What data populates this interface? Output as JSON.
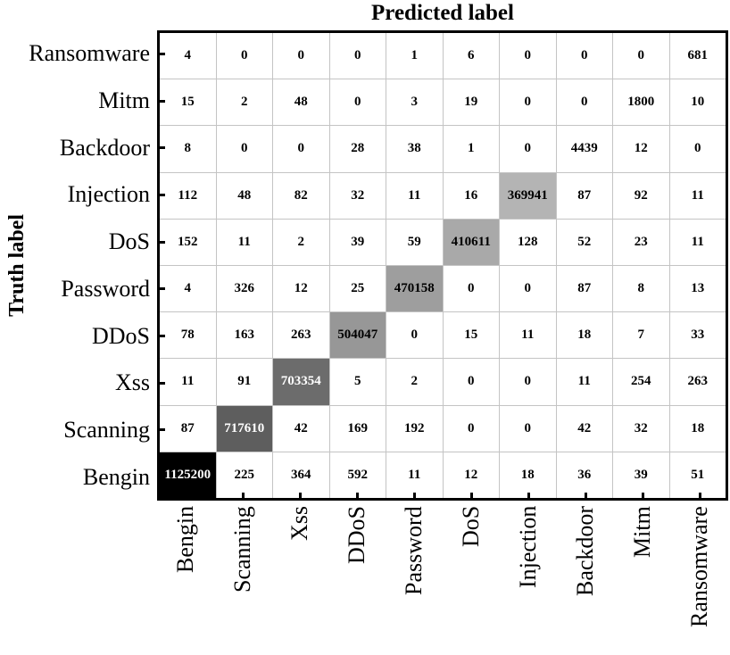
{
  "title": "Predicted label",
  "chart_data": {
    "type": "heatmap",
    "title": "Predicted label",
    "xlabel": "Predicted label",
    "ylabel": "Truth label",
    "x_categories": [
      "Bengin",
      "Scanning",
      "Xss",
      "DDoS",
      "Password",
      "DoS",
      "Injection",
      "Backdoor",
      "Mitm",
      "Ransomware"
    ],
    "y_categories": [
      "Ransomware",
      "Mitm",
      "Backdoor",
      "Injection",
      "DoS",
      "Password",
      "DDoS",
      "Xss",
      "Scanning",
      "Bengin"
    ],
    "matrix": [
      [
        4,
        0,
        0,
        0,
        1,
        6,
        0,
        0,
        0,
        681
      ],
      [
        15,
        2,
        48,
        0,
        3,
        19,
        0,
        0,
        1800,
        10
      ],
      [
        8,
        0,
        0,
        28,
        38,
        1,
        0,
        4439,
        12,
        0
      ],
      [
        112,
        48,
        82,
        32,
        11,
        16,
        369941,
        87,
        92,
        11
      ],
      [
        152,
        11,
        2,
        39,
        59,
        410611,
        128,
        52,
        23,
        11
      ],
      [
        4,
        326,
        12,
        25,
        470158,
        0,
        0,
        87,
        8,
        13
      ],
      [
        78,
        163,
        263,
        504047,
        0,
        15,
        11,
        18,
        7,
        33
      ],
      [
        11,
        91,
        703354,
        5,
        2,
        0,
        0,
        11,
        254,
        263
      ],
      [
        87,
        717610,
        42,
        169,
        192,
        0,
        0,
        42,
        32,
        18
      ],
      [
        1125200,
        225,
        364,
        592,
        11,
        12,
        18,
        36,
        39,
        51
      ]
    ],
    "cell_styles": [
      {
        "row": 3,
        "col": 6,
        "bg": "#b4b4b4",
        "fg": "#000000"
      },
      {
        "row": 4,
        "col": 5,
        "bg": "#a9a9a9",
        "fg": "#000000"
      },
      {
        "row": 5,
        "col": 4,
        "bg": "#9e9e9e",
        "fg": "#000000"
      },
      {
        "row": 6,
        "col": 3,
        "bg": "#979797",
        "fg": "#000000"
      },
      {
        "row": 7,
        "col": 2,
        "bg": "#6c6c6c",
        "fg": "#ffffff"
      },
      {
        "row": 8,
        "col": 1,
        "bg": "#5e5e5e",
        "fg": "#ffffff"
      },
      {
        "row": 9,
        "col": 0,
        "bg": "#000000",
        "fg": "#ffffff"
      }
    ],
    "colors": {
      "cell_bg": "#ffffff",
      "grid_line": "#c4c4c4",
      "border": "#000000",
      "text": "#000000"
    },
    "legend": "none",
    "grid": "on"
  }
}
